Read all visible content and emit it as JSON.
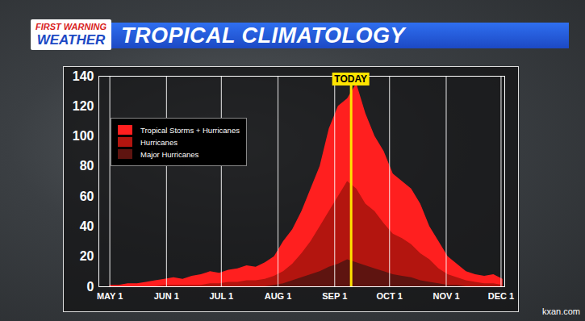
{
  "chart_data": {
    "type": "area",
    "title": "TROPICAL CLIMATOLOGY",
    "brand": [
      "FIRST WARNING",
      "WEATHER"
    ],
    "source": "kxan.com",
    "x": [
      121,
      126,
      131,
      136,
      141,
      146,
      151,
      156,
      161,
      166,
      171,
      176,
      181,
      186,
      191,
      196,
      201,
      206,
      211,
      216,
      221,
      226,
      231,
      236,
      241,
      246,
      251,
      256,
      261,
      266,
      271,
      276,
      281,
      286,
      291,
      296,
      301,
      306,
      311,
      316,
      321,
      326,
      331,
      336
    ],
    "series": [
      {
        "name": "Tropical Storms + Hurricanes",
        "color": "#ff1f1f",
        "values": [
          1,
          1,
          2,
          2,
          3,
          4,
          5,
          6,
          5,
          7,
          8,
          10,
          9,
          11,
          12,
          14,
          13,
          16,
          20,
          30,
          38,
          50,
          65,
          80,
          105,
          120,
          125,
          135,
          115,
          100,
          90,
          75,
          70,
          65,
          55,
          40,
          30,
          20,
          15,
          10,
          8,
          7,
          8,
          5
        ]
      },
      {
        "name": "Hurricanes",
        "color": "#b3150f",
        "values": [
          0,
          0,
          0,
          0,
          0,
          0,
          1,
          1,
          1,
          1,
          1,
          2,
          2,
          3,
          3,
          4,
          4,
          5,
          7,
          10,
          15,
          22,
          30,
          40,
          50,
          60,
          70,
          65,
          55,
          50,
          42,
          35,
          32,
          28,
          22,
          18,
          12,
          8,
          6,
          4,
          3,
          2,
          2,
          1
        ]
      },
      {
        "name": "Major Hurricanes",
        "color": "#5e1410",
        "values": [
          0,
          0,
          0,
          0,
          0,
          0,
          0,
          0,
          0,
          0,
          0,
          0,
          0,
          0,
          0,
          0,
          0,
          0,
          1,
          2,
          4,
          6,
          8,
          10,
          13,
          15,
          18,
          16,
          14,
          12,
          10,
          8,
          7,
          6,
          4,
          3,
          2,
          1,
          1,
          0,
          0,
          0,
          0,
          0
        ]
      }
    ],
    "xlim": [
      115,
      337
    ],
    "xticks": [
      {
        "value": 121,
        "label": "MAY 1"
      },
      {
        "value": 152,
        "label": "JUN 1"
      },
      {
        "value": 182,
        "label": "JUL 1"
      },
      {
        "value": 213,
        "label": "AUG 1"
      },
      {
        "value": 244,
        "label": "SEP 1"
      },
      {
        "value": 274,
        "label": "OCT 1"
      },
      {
        "value": 305,
        "label": "NOV 1"
      },
      {
        "value": 335,
        "label": "DEC 1"
      }
    ],
    "ylim": [
      0,
      140
    ],
    "yticks": [
      0,
      20,
      40,
      60,
      80,
      100,
      120,
      140
    ],
    "grid": "x",
    "legend": "top-left",
    "annotations": [
      {
        "text": "TODAY",
        "x": 253
      }
    ]
  }
}
